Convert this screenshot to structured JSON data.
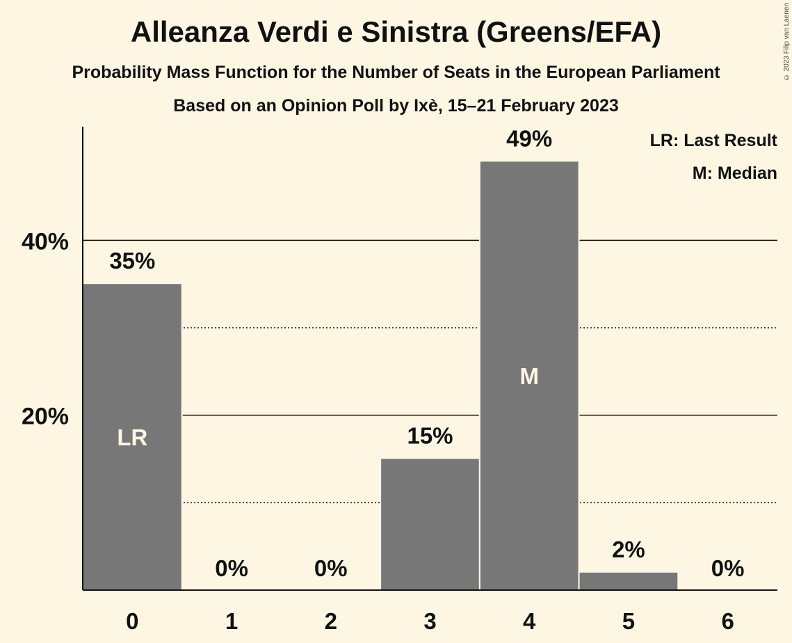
{
  "header": {
    "title": "Alleanza Verdi e Sinistra (Greens/EFA)",
    "subtitle": "Probability Mass Function for the Number of Seats in the European Parliament",
    "caption": "Based on an Opinion Poll by Ixè, 15–21 February 2023"
  },
  "copyright": "© 2023 Filip van Laenen",
  "legend": {
    "last_result": "LR: Last Result",
    "median": "M: Median"
  },
  "colors": {
    "background": "#fdf6e3",
    "bar": "#777777",
    "text": "#111111",
    "bar_label": "#fdf6e3"
  },
  "chart_data": {
    "type": "bar",
    "categories": [
      "0",
      "1",
      "2",
      "3",
      "4",
      "5",
      "6"
    ],
    "values": [
      35,
      0,
      0,
      15,
      49,
      2,
      0
    ],
    "value_labels": [
      "35%",
      "0%",
      "0%",
      "15%",
      "49%",
      "2%",
      "0%"
    ],
    "bar_markers": {
      "0": "LR",
      "4": "M"
    },
    "ylim": [
      0,
      53
    ],
    "yticks": [
      {
        "value": 20,
        "label": "20%"
      },
      {
        "value": 40,
        "label": "40%"
      }
    ],
    "gridlines_major": [
      20,
      40
    ],
    "gridlines_minor": [
      10,
      30
    ],
    "legend_position": "top-right"
  }
}
